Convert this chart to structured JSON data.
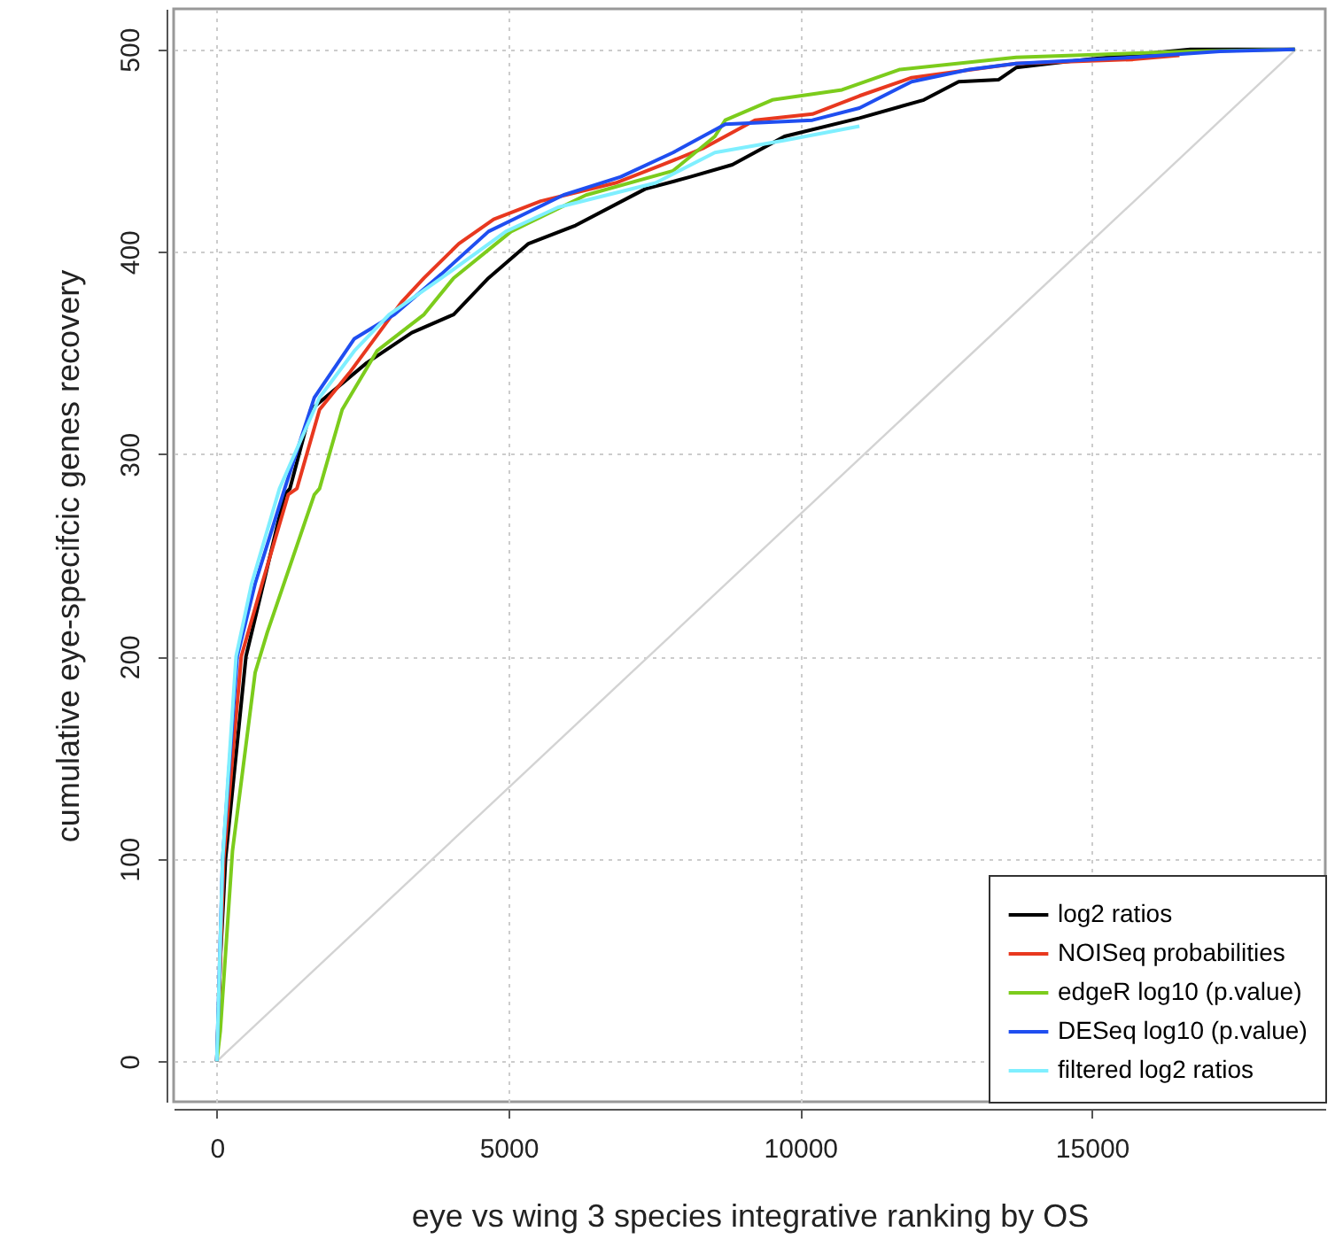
{
  "chart_data": {
    "type": "line",
    "xlabel": "eye vs wing 3 species integrative ranking by OS",
    "ylabel": "cumulative eye-specifcic genes recovery",
    "xlim": [
      -740,
      19000
    ],
    "ylim": [
      -20,
      520
    ],
    "xticks": [
      0,
      5000,
      10000,
      15000
    ],
    "yticks": [
      0,
      100,
      200,
      300,
      400,
      500
    ],
    "grid": true,
    "legend": "bottom right",
    "line_style": "solid",
    "marker": "none",
    "series": [
      {
        "color": "#d3d3d3",
        "x": [
          0,
          18500
        ],
        "values": [
          0,
          500
        ]
      },
      {
        "name": "log2 ratios",
        "color": "#000000",
        "x": [
          0,
          60,
          150,
          500,
          1164,
          1254,
          1612,
          2567,
          3343,
          4060,
          4657,
          5343,
          6149,
          7343,
          8119,
          8836,
          9731,
          11015,
          12119,
          12716,
          13403,
          13701,
          14896,
          16687,
          18478
        ],
        "values": [
          0,
          50,
          100,
          200,
          280,
          283,
          322,
          345,
          360,
          369,
          387,
          404,
          413,
          431,
          437,
          443,
          457,
          466,
          475,
          484,
          485,
          491,
          495,
          500,
          500
        ]
      },
      {
        "name": "NOISeq probabilities",
        "color": "#e8381f",
        "x": [
          0,
          120,
          420,
          776,
          1224,
          1373,
          1761,
          2269,
          3164,
          3552,
          4149,
          4746,
          5552,
          6836,
          7642,
          8328,
          9224,
          10209,
          11015,
          11910,
          13701,
          15701,
          16500
        ],
        "values": [
          0,
          100,
          200,
          236,
          280,
          283,
          322,
          340,
          375,
          387,
          404,
          416,
          425,
          434,
          443,
          451,
          465,
          468,
          477,
          486,
          493,
          495,
          497
        ]
      },
      {
        "name": "edgeR log10 (p.value)",
        "color": "#7ccc1c",
        "x": [
          0,
          60,
          269,
          657,
          866,
          1672,
          1761,
          2149,
          2746,
          3552,
          4060,
          5045,
          6328,
          7821,
          8537,
          8716,
          9522,
          10716,
          11701,
          13701,
          16687,
          18478
        ],
        "values": [
          0,
          15,
          104,
          192,
          212,
          280,
          283,
          322,
          351,
          369,
          387,
          410,
          428,
          440,
          457,
          465,
          475,
          480,
          490,
          496,
          499,
          500
        ]
      },
      {
        "name": "DESeq log10 (p.value)",
        "color": "#1f4ef0",
        "x": [
          0,
          100,
          350,
          657,
          1164,
          1672,
          2358,
          3045,
          3851,
          4657,
          5940,
          6925,
          7821,
          8716,
          10209,
          11015,
          11910,
          12896,
          13701,
          15701,
          17194,
          18478
        ],
        "values": [
          0,
          100,
          200,
          236,
          283,
          328,
          357,
          369,
          389,
          410,
          428,
          437,
          449,
          463,
          465,
          471,
          484,
          490,
          493,
          496,
          499,
          500
        ]
      },
      {
        "name": "filtered log2 ratios",
        "color": "#7fefff",
        "x": [
          0,
          100,
          330,
          597,
          1075,
          1761,
          2358,
          2955,
          3851,
          4955,
          5851,
          7522,
          8537,
          9731,
          11015
        ],
        "values": [
          0,
          100,
          200,
          236,
          283,
          328,
          351,
          369,
          387,
          410,
          422,
          434,
          449,
          455,
          462
        ]
      }
    ]
  }
}
